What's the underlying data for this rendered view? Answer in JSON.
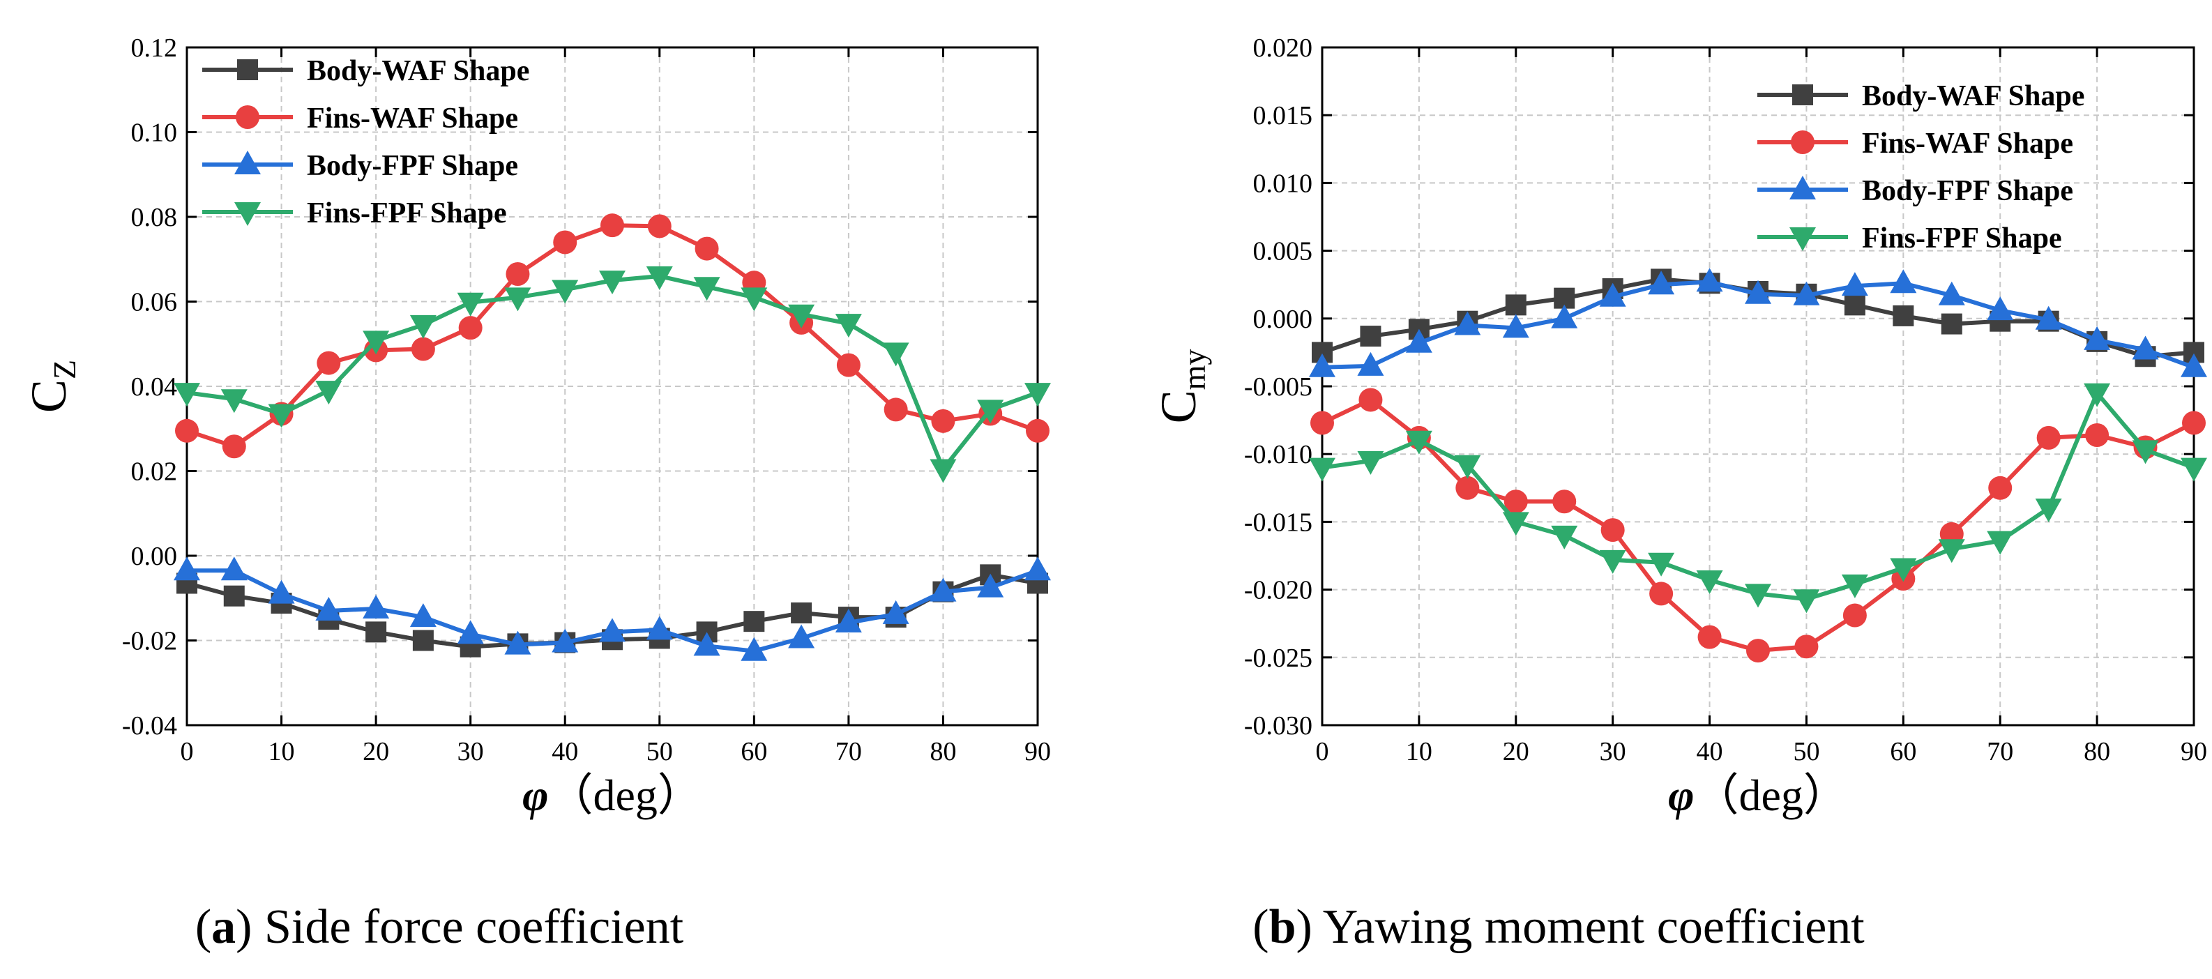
{
  "captions": [
    {
      "letter": "a",
      "text": "Side force coefficient"
    },
    {
      "letter": "b",
      "text": "Yawing moment coefficient"
    }
  ],
  "chart_data": [
    {
      "type": "line",
      "ylabel": {
        "main": "C",
        "sub": "Z"
      },
      "xlabel": {
        "symbol": "φ",
        "unit": "（deg）"
      },
      "xlim": [
        0,
        90
      ],
      "ylim": [
        -0.04,
        0.12
      ],
      "xticks": [
        0,
        10,
        20,
        30,
        40,
        50,
        60,
        70,
        80,
        90
      ],
      "xtick_labels": [
        "0",
        "10",
        "20",
        "30",
        "40",
        "50",
        "60",
        "70",
        "80",
        "90"
      ],
      "yticks": [
        -0.04,
        -0.02,
        0,
        0.02,
        0.04,
        0.06,
        0.08,
        0.1,
        0.12
      ],
      "ytick_labels": [
        "-0.04",
        "-0.02",
        "0.00",
        "0.02",
        "0.04",
        "0.06",
        "0.08",
        "0.10",
        "0.12"
      ],
      "grid": true,
      "legend_position": "top-left",
      "x": [
        0,
        5,
        10,
        15,
        20,
        25,
        30,
        35,
        40,
        45,
        50,
        55,
        60,
        65,
        70,
        75,
        80,
        85,
        90
      ],
      "series": [
        {
          "name": "Body-WAF Shape",
          "color": "#404040",
          "marker": "square",
          "values": [
            -0.0065,
            -0.0095,
            -0.0112,
            -0.015,
            -0.018,
            -0.02,
            -0.0215,
            -0.0208,
            -0.0205,
            -0.0198,
            -0.0195,
            -0.018,
            -0.0155,
            -0.0135,
            -0.0145,
            -0.0145,
            -0.0085,
            -0.0045,
            -0.0065
          ]
        },
        {
          "name": "Fins-WAF Shape",
          "color": "#e84040",
          "marker": "circle",
          "values": [
            0.0295,
            0.0258,
            0.0335,
            0.0455,
            0.0485,
            0.0488,
            0.0538,
            0.0665,
            0.074,
            0.078,
            0.0778,
            0.0725,
            0.0645,
            0.055,
            0.045,
            0.0345,
            0.0318,
            0.0335,
            0.0295
          ]
        },
        {
          "name": "Body-FPF Shape",
          "color": "#2670d8",
          "marker": "triangle-up",
          "values": [
            -0.0035,
            -0.0035,
            -0.009,
            -0.013,
            -0.0125,
            -0.0145,
            -0.0185,
            -0.021,
            -0.0205,
            -0.018,
            -0.0175,
            -0.0213,
            -0.0225,
            -0.0195,
            -0.0158,
            -0.0138,
            -0.0085,
            -0.0075,
            -0.0035
          ]
        },
        {
          "name": "Fins-FPF Shape",
          "color": "#2eaa6c",
          "marker": "triangle-down",
          "values": [
            0.0385,
            0.037,
            0.0335,
            0.039,
            0.0508,
            0.0545,
            0.0598,
            0.061,
            0.0628,
            0.065,
            0.066,
            0.0635,
            0.061,
            0.057,
            0.0548,
            0.048,
            0.0205,
            0.0345,
            0.0385
          ]
        }
      ]
    },
    {
      "type": "line",
      "ylabel": {
        "main": "C",
        "sub": "my"
      },
      "xlabel": {
        "symbol": "φ",
        "unit": "（deg）"
      },
      "xlim": [
        0,
        90
      ],
      "ylim": [
        -0.03,
        0.02
      ],
      "xticks": [
        0,
        10,
        20,
        30,
        40,
        50,
        60,
        70,
        80,
        90
      ],
      "xtick_labels": [
        "0",
        "10",
        "20",
        "30",
        "40",
        "50",
        "60",
        "70",
        "80",
        "90"
      ],
      "yticks": [
        -0.03,
        -0.025,
        -0.02,
        -0.015,
        -0.01,
        -0.005,
        0,
        0.005,
        0.01,
        0.015,
        0.02
      ],
      "ytick_labels": [
        "-0.030",
        "-0.025",
        "-0.020",
        "-0.015",
        "-0.010",
        "-0.005",
        "0.000",
        "0.005",
        "0.010",
        "0.015",
        "0.020"
      ],
      "grid": true,
      "legend_position": "top-right",
      "x": [
        0,
        5,
        10,
        15,
        20,
        25,
        30,
        35,
        40,
        45,
        50,
        55,
        60,
        65,
        70,
        75,
        80,
        85,
        90
      ],
      "series": [
        {
          "name": "Body-WAF Shape",
          "color": "#404040",
          "marker": "square",
          "values": [
            -0.0025,
            -0.0013,
            -0.0008,
            -0.0002,
            0.001,
            0.0015,
            0.0022,
            0.0029,
            0.0026,
            0.002,
            0.0018,
            0.001,
            0.0002,
            -0.0004,
            -0.0002,
            -0.0002,
            -0.0017,
            -0.0028,
            -0.0025
          ]
        },
        {
          "name": "Fins-WAF Shape",
          "color": "#e84040",
          "marker": "circle",
          "values": [
            -0.0077,
            -0.006,
            -0.0088,
            -0.0125,
            -0.0135,
            -0.0135,
            -0.0156,
            -0.0203,
            -0.0235,
            -0.0245,
            -0.0242,
            -0.0219,
            -0.0192,
            -0.0159,
            -0.0125,
            -0.0088,
            -0.0086,
            -0.0095,
            -0.0077
          ]
        },
        {
          "name": "Body-FPF Shape",
          "color": "#2670d8",
          "marker": "triangle-up",
          "values": [
            -0.0036,
            -0.0035,
            -0.0018,
            -0.0005,
            -0.0007,
            0.0,
            0.0016,
            0.0025,
            0.0027,
            0.0018,
            0.0017,
            0.0024,
            0.0026,
            0.0017,
            0.0006,
            -0.0001,
            -0.0016,
            -0.0023,
            -0.0036
          ]
        },
        {
          "name": "Fins-FPF Shape",
          "color": "#2eaa6c",
          "marker": "triangle-down",
          "values": [
            -0.011,
            -0.0105,
            -0.009,
            -0.0108,
            -0.015,
            -0.016,
            -0.0178,
            -0.018,
            -0.0193,
            -0.0203,
            -0.0207,
            -0.0196,
            -0.0184,
            -0.017,
            -0.0164,
            -0.014,
            -0.0055,
            -0.0097,
            -0.011
          ]
        }
      ]
    }
  ]
}
